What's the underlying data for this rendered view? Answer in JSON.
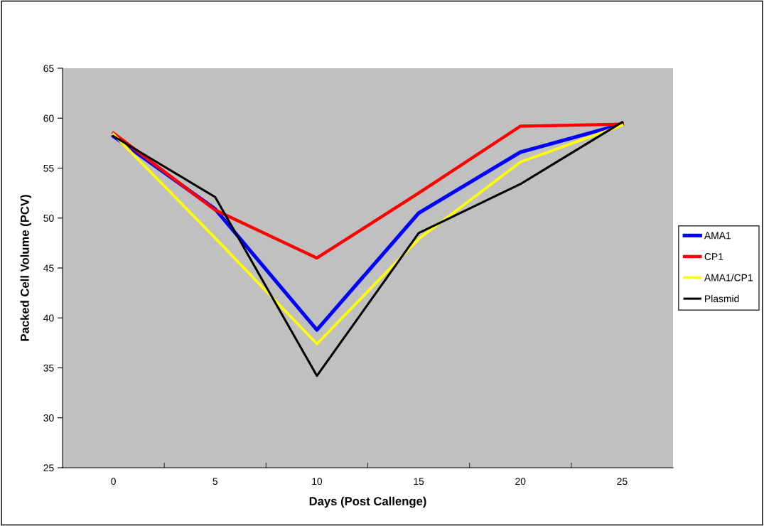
{
  "chart_data": {
    "type": "line",
    "xlabel": "Days (Post Callenge)",
    "ylabel": "Packed Cell Volume (PCV)",
    "categories": [
      "0",
      "5",
      "10",
      "15",
      "20",
      "25"
    ],
    "series": [
      {
        "name": "AMA1",
        "color": "#0000ff",
        "values": [
          58.2,
          50.9,
          38.8,
          50.5,
          56.6,
          59.4
        ]
      },
      {
        "name": "CP1",
        "color": "#ff0000",
        "values": [
          58.5,
          50.8,
          46.0,
          52.5,
          59.2,
          59.4
        ]
      },
      {
        "name": "AMA1/CP1",
        "color": "#ffff00",
        "values": [
          58.4,
          48.0,
          37.4,
          47.9,
          55.6,
          59.3
        ]
      },
      {
        "name": "Plasmid",
        "color": "#000000",
        "values": [
          58.2,
          52.1,
          34.2,
          48.5,
          53.4,
          59.6
        ]
      }
    ],
    "ylim": [
      25,
      65
    ],
    "yticks": [
      25,
      30,
      35,
      40,
      45,
      50,
      55,
      60,
      65
    ],
    "grid": false,
    "legend": "right",
    "marker": "none",
    "line_style": "solid"
  }
}
